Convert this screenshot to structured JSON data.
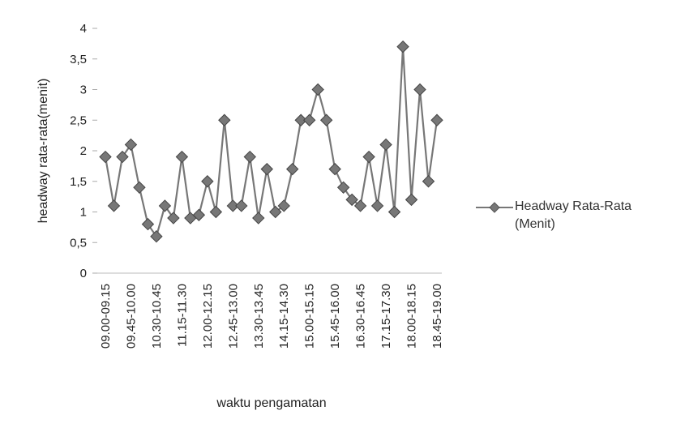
{
  "chart_data": {
    "type": "line",
    "y_label": "headway rata-rata(menit)",
    "x_label": "waktu pengamatan",
    "categories": [
      "09.00-09.15",
      null,
      null,
      "09.45-10.00",
      null,
      null,
      "10.30-10.45",
      null,
      null,
      "11.15-11.30",
      null,
      null,
      "12.00-12.15",
      null,
      null,
      "12.45-13.00",
      null,
      null,
      "13.30-13.45",
      null,
      null,
      "14.15-14.30",
      null,
      null,
      "15.00-15.15",
      null,
      null,
      "15.45-16.00",
      null,
      null,
      "16.30-16.45",
      null,
      null,
      "17.15-17.30",
      null,
      null,
      "18.00-18.15",
      null,
      null,
      "18.45-19.00"
    ],
    "series": [
      {
        "name": "Headway Rata-Rata (Menit)",
        "color": "#777777",
        "values": [
          1.9,
          1.1,
          1.9,
          2.1,
          1.4,
          0.8,
          0.6,
          1.1,
          0.9,
          1.9,
          0.9,
          0.95,
          1.5,
          1.0,
          2.5,
          1.1,
          1.1,
          1.9,
          0.9,
          1.7,
          1.0,
          1.1,
          1.7,
          2.5,
          2.5,
          3.0,
          2.5,
          1.7,
          1.4,
          1.2,
          1.1,
          1.9,
          1.1,
          2.1,
          1.0,
          3.7,
          1.2,
          3.0,
          1.5,
          2.5
        ]
      }
    ],
    "ylim": [
      0,
      4
    ],
    "yticks": [
      0,
      {
        "value": 0.5,
        "label": "0,5"
      },
      1,
      {
        "value": 1.5,
        "label": "1,5"
      },
      2,
      {
        "value": 2.5,
        "label": "2,5"
      },
      3,
      {
        "value": 3.5,
        "label": "3,5"
      },
      4
    ],
    "grid": false,
    "legend": "right"
  }
}
